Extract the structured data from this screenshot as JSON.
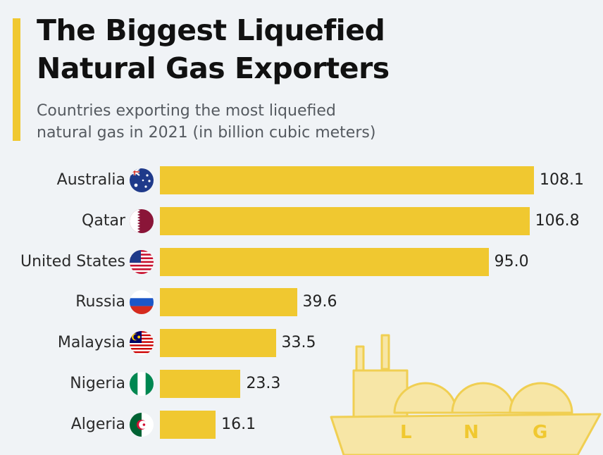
{
  "header": {
    "title_line1": "The Biggest Liquefied",
    "title_line2": "Natural Gas Exporters",
    "subtitle_line1": "Countries exporting the most liquefied",
    "subtitle_line2": "natural gas in 2021 (in billion cubic meters)"
  },
  "colors": {
    "accent": "#f0c830",
    "bar": "#f0c830",
    "background": "#f0f3f6",
    "ship_fill": "#f7e6a6",
    "ship_stroke": "#f0cf52"
  },
  "chart_data": {
    "type": "bar",
    "orientation": "horizontal",
    "title": "The Biggest Liquefied Natural Gas Exporters",
    "subtitle": "Countries exporting the most liquefied natural gas in 2021 (in billion cubic meters)",
    "categories": [
      "Australia",
      "Qatar",
      "United States",
      "Russia",
      "Malaysia",
      "Nigeria",
      "Algeria"
    ],
    "values": [
      108.1,
      106.8,
      95.0,
      39.6,
      33.5,
      23.3,
      16.1
    ],
    "value_labels": [
      "108.1",
      "106.8",
      "95.0",
      "39.6",
      "33.5",
      "23.3",
      "16.1"
    ],
    "flags": [
      "australia-flag",
      "qatar-flag",
      "united-states-flag",
      "russia-flag",
      "malaysia-flag",
      "nigeria-flag",
      "algeria-flag"
    ],
    "xlim": [
      0,
      115
    ],
    "grid": false,
    "legend": "none"
  },
  "illustration": {
    "name": "lng-tanker-ship",
    "letters": [
      "L",
      "N",
      "G"
    ]
  }
}
